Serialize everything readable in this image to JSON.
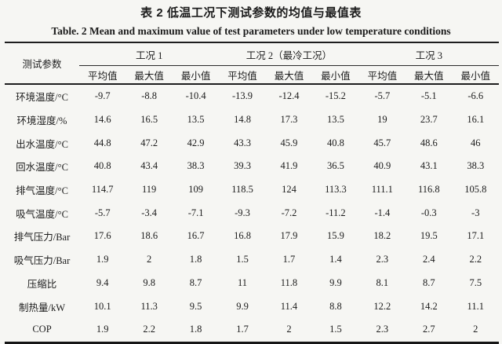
{
  "page": {
    "title_zh": "表 2  低温工况下测试参数的均值与最值表",
    "title_en": "Table. 2 Mean and maximum value of test parameters under low temperature conditions"
  },
  "table": {
    "param_header": "测试参数",
    "groups": [
      {
        "label": "工况 1"
      },
      {
        "label": "工况 2（最冷工况）"
      },
      {
        "label": "工况 3"
      }
    ],
    "subheaders": [
      "平均值",
      "最大值",
      "最小值"
    ],
    "rows": [
      {
        "label": "环境温度/°C",
        "values": [
          "-9.7",
          "-8.8",
          "-10.4",
          "-13.9",
          "-12.4",
          "-15.2",
          "-5.7",
          "-5.1",
          "-6.6"
        ]
      },
      {
        "label": "环境湿度/%",
        "values": [
          "14.6",
          "16.5",
          "13.5",
          "14.8",
          "17.3",
          "13.5",
          "19",
          "23.7",
          "16.1"
        ]
      },
      {
        "label": "出水温度/°C",
        "values": [
          "44.8",
          "47.2",
          "42.9",
          "43.3",
          "45.9",
          "40.8",
          "45.7",
          "48.6",
          "46"
        ]
      },
      {
        "label": "回水温度/°C",
        "values": [
          "40.8",
          "43.4",
          "38.3",
          "39.3",
          "41.9",
          "36.5",
          "40.9",
          "43.1",
          "38.3"
        ]
      },
      {
        "label": "排气温度/°C",
        "values": [
          "114.7",
          "119",
          "109",
          "118.5",
          "124",
          "113.3",
          "111.1",
          "116.8",
          "105.8"
        ]
      },
      {
        "label": "吸气温度/°C",
        "values": [
          "-5.7",
          "-3.4",
          "-7.1",
          "-9.3",
          "-7.2",
          "-11.2",
          "-1.4",
          "-0.3",
          "-3"
        ]
      },
      {
        "label": "排气压力/Bar",
        "values": [
          "17.6",
          "18.6",
          "16.7",
          "16.8",
          "17.9",
          "15.9",
          "18.2",
          "19.5",
          "17.1"
        ]
      },
      {
        "label": "吸气压力/Bar",
        "values": [
          "1.9",
          "2",
          "1.8",
          "1.5",
          "1.7",
          "1.4",
          "2.3",
          "2.4",
          "2.2"
        ]
      },
      {
        "label": "压缩比",
        "values": [
          "9.4",
          "9.8",
          "8.7",
          "11",
          "11.8",
          "9.9",
          "8.1",
          "8.7",
          "7.5"
        ]
      },
      {
        "label": "制热量/kW",
        "values": [
          "10.1",
          "11.3",
          "9.5",
          "9.9",
          "11.4",
          "8.8",
          "12.2",
          "14.2",
          "11.1"
        ]
      },
      {
        "label": "COP",
        "values": [
          "1.9",
          "2.2",
          "1.8",
          "1.7",
          "2",
          "1.5",
          "2.3",
          "2.7",
          "2"
        ]
      }
    ]
  },
  "colors": {
    "background": "#f6f6f3",
    "text": "#1c1c1c",
    "rule": "#1e1e1e"
  }
}
